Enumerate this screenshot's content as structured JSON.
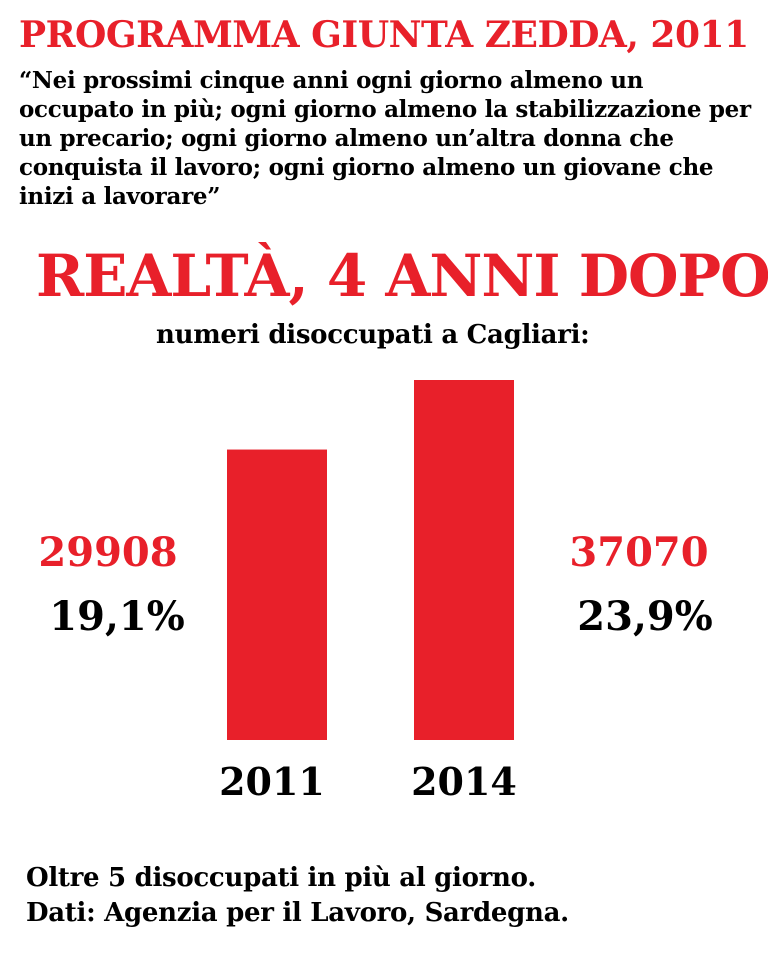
{
  "header": {
    "title": "PROGRAMMA GIUNTA ZEDDA, 2011",
    "quote": "“Nei prossimi cinque anni ogni giorno almeno un occupato in più; ogni giorno almeno la stabilizzazione per un precario; ogni giorno almeno un’altra donna che conquista il lavoro; ogni giorno almeno un giovane che inizi a lavorare”"
  },
  "reality": {
    "title": "REALTÀ, 4 ANNI DOPO",
    "subtitle": "numeri disoccupati a Cagliari:"
  },
  "colors": {
    "accent": "#e8202a",
    "text": "#000000",
    "background": "#ffffff"
  },
  "chart_data": {
    "type": "bar",
    "title": "numeri disoccupati a Cagliari:",
    "categories": [
      "2011",
      "2014"
    ],
    "values": [
      29908,
      37070
    ],
    "percent_labels": [
      "19,1%",
      "23,9%"
    ],
    "value_labels": [
      "29908",
      "37070"
    ],
    "bar_color": "#e8202a",
    "xlabel": "",
    "ylabel": "",
    "ylim": [
      0,
      37070
    ],
    "grid": false,
    "legend": "none"
  },
  "footer": {
    "line1": "Oltre 5 disoccupati in più al giorno.",
    "line2": "Dati: Agenzia per il Lavoro, Sardegna."
  }
}
